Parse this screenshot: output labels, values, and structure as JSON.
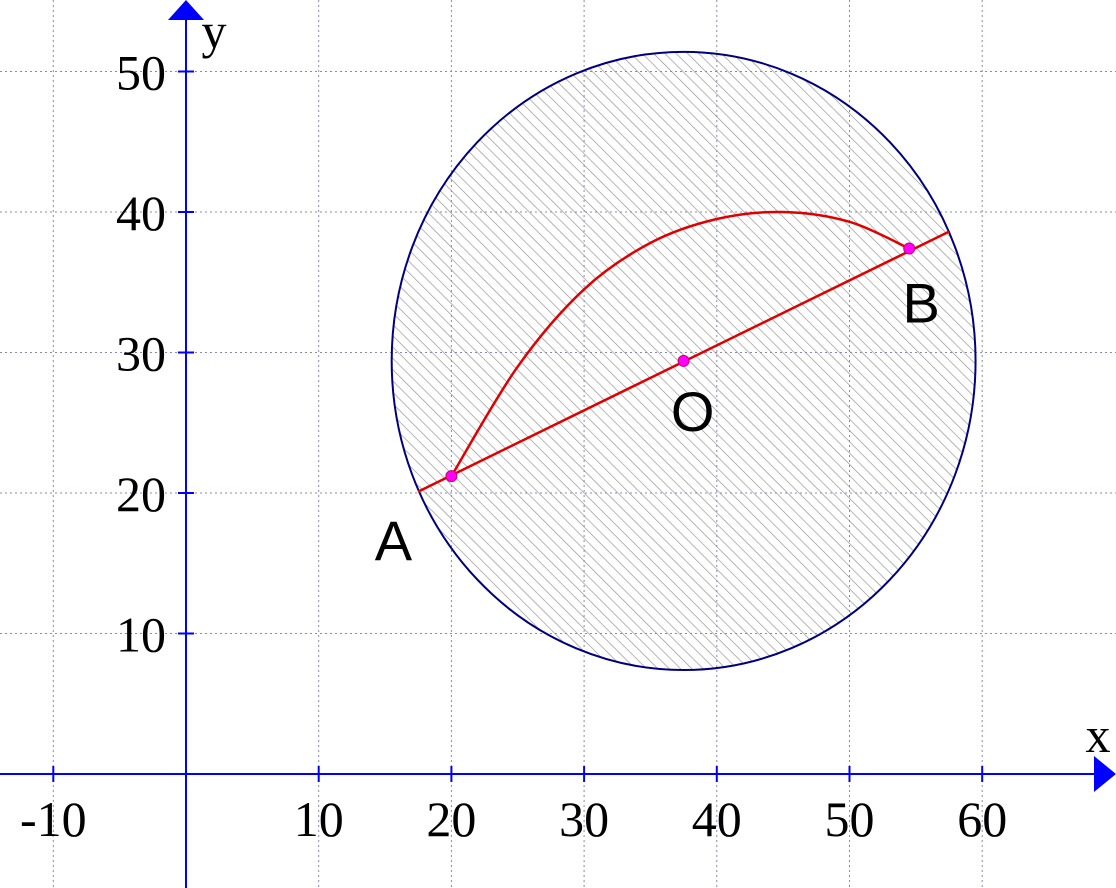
{
  "chart_data": {
    "type": "scatter",
    "title": "",
    "xlabel": "x",
    "ylabel": "y",
    "xlim": [
      -14,
      68
    ],
    "ylim": [
      -8,
      54
    ],
    "x_ticks": [
      -10,
      10,
      20,
      30,
      40,
      50,
      60
    ],
    "y_ticks": [
      10,
      20,
      30,
      40,
      50
    ],
    "grid": true,
    "circle": {
      "center": [
        37.5,
        29.4
      ],
      "radius_x": 22.0,
      "radius_y": 22.0,
      "shaded": true
    },
    "segment": {
      "from": [
        17.5,
        20.1
      ],
      "to": [
        57.5,
        38.6
      ]
    },
    "curve": [
      [
        20.0,
        21.2
      ],
      [
        25.0,
        29.0
      ],
      [
        30.0,
        34.5
      ],
      [
        35.0,
        37.8
      ],
      [
        40.0,
        39.5
      ],
      [
        45.0,
        40.0
      ],
      [
        50.0,
        39.3
      ],
      [
        54.5,
        37.4
      ]
    ],
    "points": [
      {
        "label": "A",
        "x": 20.0,
        "y": 21.2,
        "label_pos": "bottom-left"
      },
      {
        "label": "O",
        "x": 37.5,
        "y": 29.4,
        "label_pos": "bottom"
      },
      {
        "label": "B",
        "x": 54.5,
        "y": 37.4,
        "label_pos": "bottom-right"
      }
    ],
    "colors": {
      "axis": "#0000ff",
      "grid": "#8888bb",
      "circle": "#000080",
      "hatch": "#909090",
      "curve": "#e00000",
      "point": "#ff00ff"
    }
  }
}
